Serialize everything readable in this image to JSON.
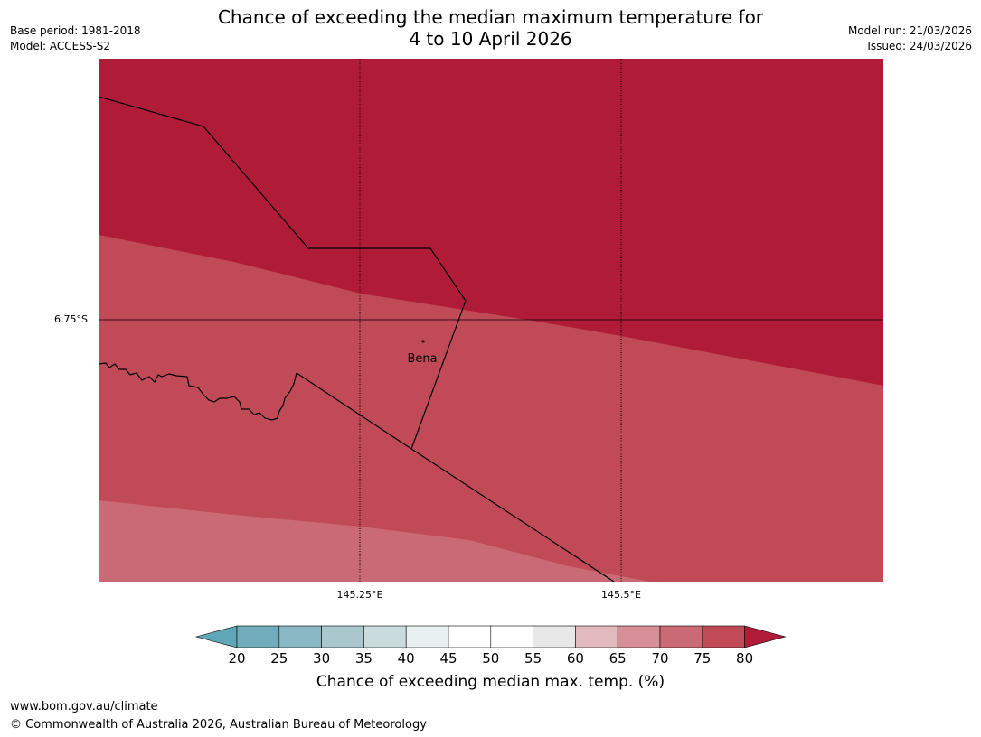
{
  "header": {
    "title_line1": "Chance of exceeding the median maximum temperature for",
    "title_line2": "4 to 10 April 2026",
    "base_period": "Base period: 1981-2018",
    "model": "Model: ACCESS-S2",
    "model_run": "Model run: 21/03/2026",
    "issued": "Issued: 24/03/2026"
  },
  "map": {
    "latitude_label": "6.75°S",
    "longitude_labels": [
      "145.25°E",
      "145.5°E"
    ],
    "place_label": "Bena",
    "colors": {
      "band_80_plus": "#b01c38",
      "band_75_80": "#c04a56",
      "band_70_75": "#c96a74"
    }
  },
  "legend": {
    "ticks": [
      "20",
      "25",
      "30",
      "35",
      "40",
      "45",
      "50",
      "55",
      "60",
      "65",
      "70",
      "75",
      "80"
    ],
    "colors": [
      "#5fa7b7",
      "#6fadbc",
      "#8bb8c5",
      "#a9c7cd",
      "#cadbde",
      "#e8f0f1",
      "#ffffff",
      "#ffffff",
      "#e8e8e8",
      "#e2b9bd",
      "#d78e97",
      "#c96a74",
      "#c04a56",
      "#b01c38"
    ],
    "label": "Chance of exceeding median max. temp. (%)"
  },
  "footer": {
    "url": "www.bom.gov.au/climate",
    "copyright": "© Commonwealth of Australia 2026, Australian Bureau of Meteorology"
  }
}
